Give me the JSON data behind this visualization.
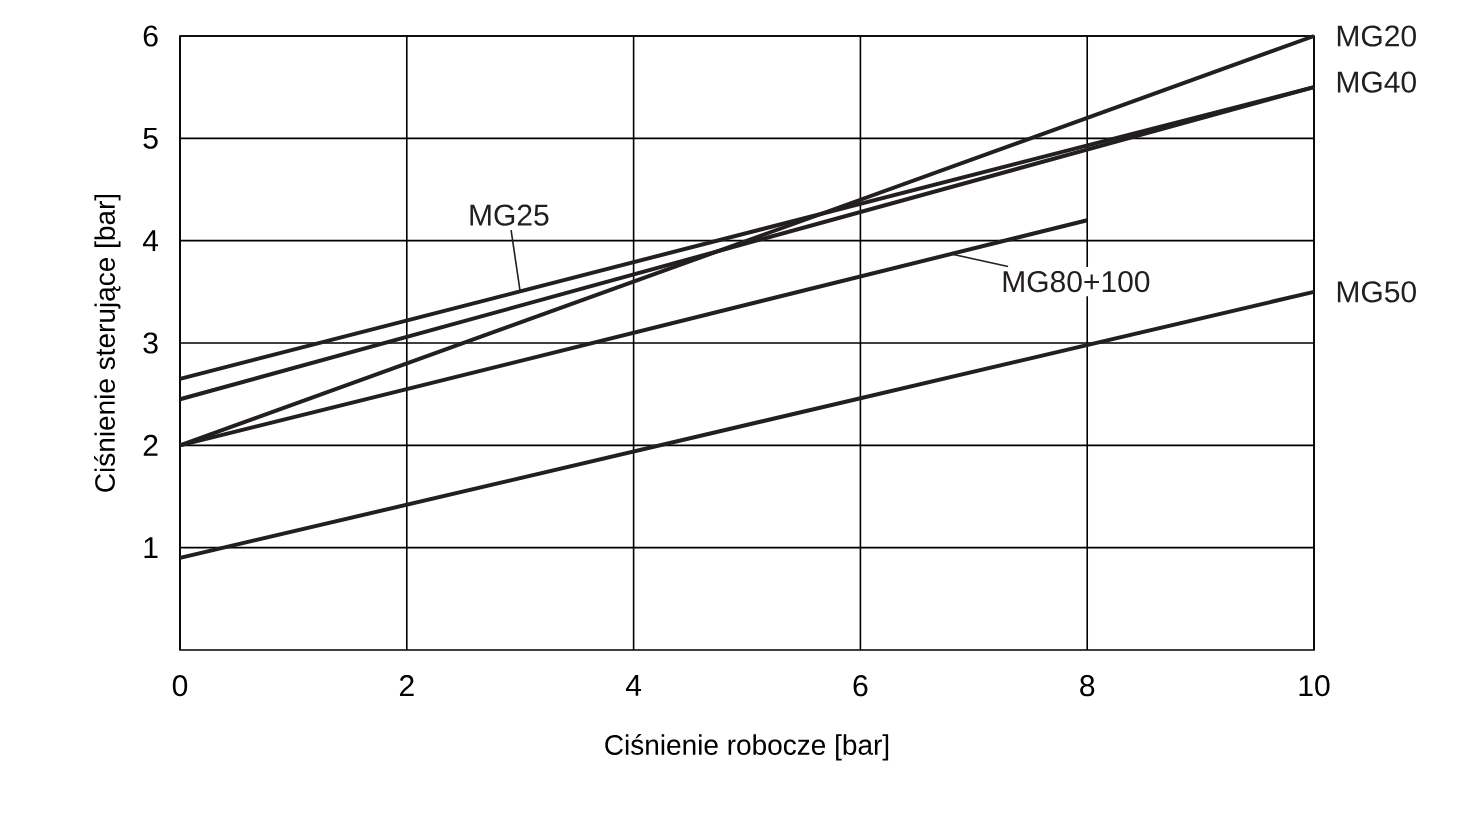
{
  "chart_data": {
    "type": "line",
    "xlabel": "Ciśnienie robocze [bar]",
    "ylabel": "Ciśnienie sterujące [bar]",
    "xlim": [
      0,
      10
    ],
    "ylim": [
      0,
      6
    ],
    "xticks": [
      0,
      2,
      4,
      6,
      8,
      10
    ],
    "yticks": [
      1,
      2,
      3,
      4,
      5,
      6
    ],
    "grid": true,
    "series": [
      {
        "name": "MG20",
        "color": "#231f20",
        "x": [
          0,
          10
        ],
        "values": [
          2.0,
          6.0
        ]
      },
      {
        "name": "MG25",
        "color": "#231f20",
        "x": [
          0,
          10
        ],
        "values": [
          2.65,
          5.5
        ]
      },
      {
        "name": "MG40",
        "color": "#231f20",
        "x": [
          0,
          10
        ],
        "values": [
          2.45,
          5.5
        ]
      },
      {
        "name": "MG80+100",
        "color": "#231f20",
        "x": [
          0,
          8
        ],
        "values": [
          2.0,
          4.2
        ]
      },
      {
        "name": "MG50",
        "color": "#231f20",
        "x": [
          0,
          10
        ],
        "values": [
          0.9,
          3.5
        ]
      }
    ]
  }
}
